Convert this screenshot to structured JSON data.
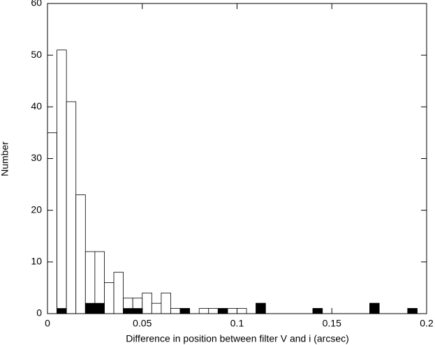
{
  "chart_data": {
    "type": "histogram",
    "xlabel": "Difference in position between filter V and i (arcsec)",
    "ylabel": "Number",
    "bins": [
      0,
      0.005,
      0.01,
      0.015,
      0.02,
      0.025,
      0.03,
      0.035,
      0.04,
      0.045,
      0.05,
      0.055,
      0.06,
      0.065,
      0.07,
      0.075,
      0.08,
      0.085,
      0.09,
      0.095,
      0.1,
      0.105,
      0.11,
      0.115,
      0.12,
      0.125,
      0.13,
      0.135,
      0.14,
      0.145,
      0.15,
      0.155,
      0.16,
      0.165,
      0.17,
      0.175,
      0.18,
      0.185,
      0.19,
      0.195,
      0.2
    ],
    "series": [
      {
        "color": "#ffffff",
        "values": [
          35,
          51,
          41,
          23,
          12,
          12,
          6,
          8,
          3,
          3,
          4,
          2,
          4,
          1,
          1,
          0,
          1,
          1,
          1,
          1,
          1,
          0,
          2,
          0,
          0,
          0,
          0,
          0,
          1,
          0,
          0,
          0,
          0,
          0,
          2,
          0,
          0,
          0,
          1,
          0
        ]
      },
      {
        "color": "#000000",
        "values": [
          0,
          1,
          0,
          0,
          2,
          2,
          0,
          0,
          1,
          1,
          0,
          0,
          0,
          0,
          1,
          0,
          0,
          0,
          1,
          0,
          0,
          0,
          2,
          0,
          0,
          0,
          0,
          0,
          1,
          0,
          0,
          0,
          0,
          0,
          2,
          0,
          0,
          0,
          1,
          0
        ]
      }
    ],
    "xlim": [
      0,
      0.2
    ],
    "xticks": [
      0,
      0.05,
      0.1,
      0.15,
      0.2
    ],
    "ylim": [
      0,
      60
    ],
    "yticks": [
      0,
      10,
      20,
      30,
      40,
      50,
      60
    ]
  }
}
